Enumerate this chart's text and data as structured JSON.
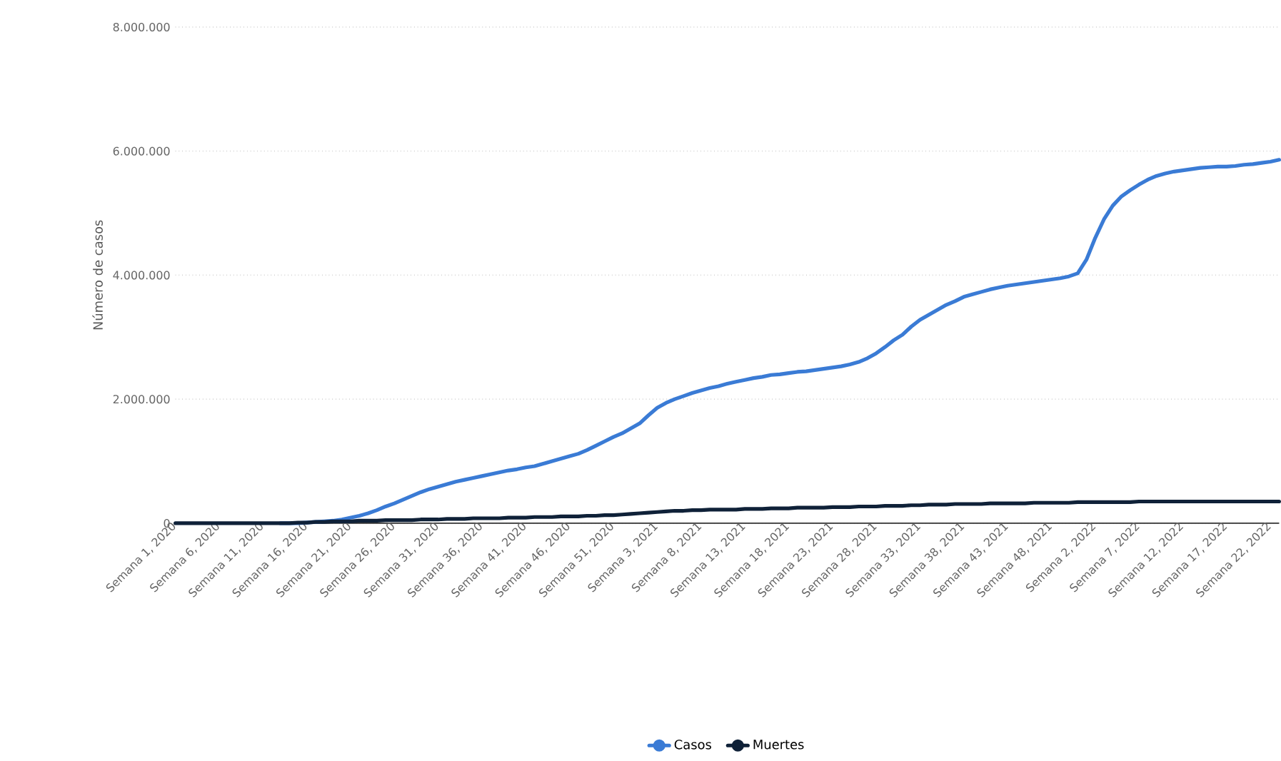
{
  "chart_data": {
    "type": "line",
    "categories": [
      "Semana 1, 2020",
      null,
      null,
      null,
      null,
      "Semana 6, 2020",
      null,
      null,
      null,
      null,
      "Semana 11, 2020",
      null,
      null,
      null,
      null,
      "Semana 16, 2020",
      null,
      null,
      null,
      null,
      "Semana 21, 2020",
      null,
      null,
      null,
      null,
      "Semana 26, 2020",
      null,
      null,
      null,
      null,
      "Semana 31, 2020",
      null,
      null,
      null,
      null,
      "Semana 36, 2020",
      null,
      null,
      null,
      null,
      "Semana 41, 2020",
      null,
      null,
      null,
      null,
      "Semana 46, 2020",
      null,
      null,
      null,
      null,
      "Semana 51, 2020",
      null,
      null,
      null,
      null,
      "Semana 3, 2021",
      null,
      null,
      null,
      null,
      "Semana 8, 2021",
      null,
      null,
      null,
      null,
      "Semana 13, 2021",
      null,
      null,
      null,
      null,
      "Semana 18, 2021",
      null,
      null,
      null,
      null,
      "Semana 23, 2021",
      null,
      null,
      null,
      null,
      "Semana 28, 2021",
      null,
      null,
      null,
      null,
      "Semana 33, 2021",
      null,
      null,
      null,
      null,
      "Semana 38, 2021",
      null,
      null,
      null,
      null,
      "Semana 43, 2021",
      null,
      null,
      null,
      null,
      "Semana 48, 2021",
      null,
      null,
      null,
      null,
      "Semana 2, 2022",
      null,
      null,
      null,
      null,
      "Semana 7, 2022",
      null,
      null,
      null,
      null,
      "Semana 12, 2022",
      null,
      null,
      null,
      null,
      "Semana 17, 2022",
      null,
      null,
      null,
      null,
      "Semana 22, 2022",
      null
    ],
    "series": [
      {
        "name": "Casos",
        "color": "#3a7bd5",
        "values": [
          null,
          null,
          null,
          null,
          null,
          null,
          null,
          null,
          null,
          null,
          null,
          null,
          0,
          0,
          0,
          10000,
          20000,
          30000,
          40000,
          60000,
          90000,
          120000,
          160000,
          210000,
          270000,
          320000,
          380000,
          440000,
          500000,
          550000,
          590000,
          630000,
          670000,
          700000,
          730000,
          760000,
          790000,
          820000,
          850000,
          870000,
          900000,
          920000,
          960000,
          1000000,
          1040000,
          1080000,
          1120000,
          1180000,
          1250000,
          1320000,
          1390000,
          1450000,
          1530000,
          1610000,
          1740000,
          1860000,
          1940000,
          2000000,
          2050000,
          2100000,
          2140000,
          2180000,
          2210000,
          2250000,
          2280000,
          2310000,
          2340000,
          2360000,
          2390000,
          2400000,
          2420000,
          2440000,
          2450000,
          2470000,
          2490000,
          2510000,
          2530000,
          2560000,
          2600000,
          2660000,
          2740000,
          2840000,
          2950000,
          3040000,
          3170000,
          3280000,
          3360000,
          3440000,
          3520000,
          3580000,
          3650000,
          3690000,
          3730000,
          3770000,
          3800000,
          3830000,
          3850000,
          3870000,
          3890000,
          3910000,
          3930000,
          3950000,
          3980000,
          4030000,
          4250000,
          4600000,
          4900000,
          5120000,
          5270000,
          5370000,
          5460000,
          5540000,
          5600000,
          5640000,
          5670000,
          5690000,
          5710000,
          5730000,
          5740000,
          5750000,
          5750000,
          5760000,
          5780000,
          5790000,
          5810000,
          5830000,
          5860000
        ]
      },
      {
        "name": "Muertes",
        "color": "#0f2138",
        "values": [
          0,
          0,
          0,
          0,
          0,
          0,
          0,
          0,
          0,
          0,
          0,
          0,
          0,
          0,
          10000,
          10000,
          20000,
          20000,
          30000,
          30000,
          30000,
          40000,
          40000,
          40000,
          50000,
          50000,
          50000,
          50000,
          60000,
          60000,
          60000,
          70000,
          70000,
          70000,
          80000,
          80000,
          80000,
          80000,
          90000,
          90000,
          90000,
          100000,
          100000,
          100000,
          110000,
          110000,
          110000,
          120000,
          120000,
          130000,
          130000,
          140000,
          150000,
          160000,
          170000,
          180000,
          190000,
          200000,
          200000,
          210000,
          210000,
          220000,
          220000,
          220000,
          220000,
          230000,
          230000,
          230000,
          240000,
          240000,
          240000,
          250000,
          250000,
          250000,
          250000,
          260000,
          260000,
          260000,
          270000,
          270000,
          270000,
          280000,
          280000,
          280000,
          290000,
          290000,
          300000,
          300000,
          300000,
          310000,
          310000,
          310000,
          310000,
          320000,
          320000,
          320000,
          320000,
          320000,
          330000,
          330000,
          330000,
          330000,
          330000,
          340000,
          340000,
          340000,
          340000,
          340000,
          340000,
          340000,
          350000,
          350000,
          350000,
          350000,
          350000,
          350000,
          350000,
          350000,
          350000,
          350000,
          350000,
          350000,
          350000,
          350000,
          350000,
          350000,
          350000
        ]
      }
    ],
    "ylabel": "Número de casos",
    "ylim": [
      0,
      8000000
    ],
    "yticks": [
      0,
      {
        "value": 2000000,
        "label": "2.000.000"
      },
      {
        "value": 4000000,
        "label": "4.000.000"
      },
      {
        "value": 6000000,
        "label": "6.000.000"
      },
      {
        "value": 8000000,
        "label": "8.000.000"
      }
    ],
    "grid": "y",
    "legend": "bottom"
  }
}
